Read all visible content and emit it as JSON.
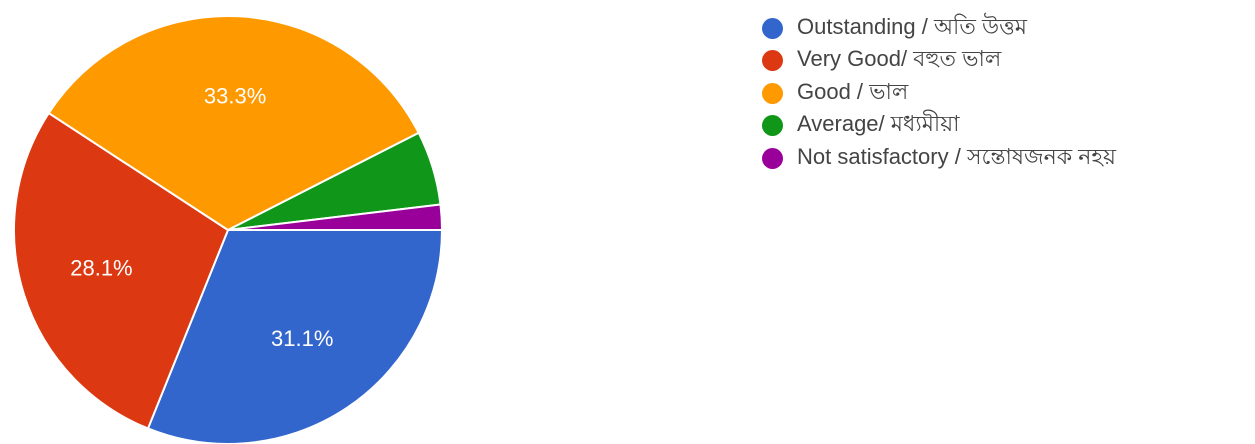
{
  "chart_data": {
    "type": "pie",
    "start_angle_deg": 0,
    "direction": "clockwise",
    "legend_position": "right",
    "slices": [
      {
        "label": "Outstanding / অতি উত্তম",
        "value": 31.1,
        "display": "31.1%",
        "color": "#3366cc",
        "show_label": true
      },
      {
        "label": "Very Good/ বহুত ভাল",
        "value": 28.1,
        "display": "28.1%",
        "color": "#dc3912",
        "show_label": true
      },
      {
        "label": "Good / ভাল",
        "value": 33.3,
        "display": "33.3%",
        "color": "#ff9900",
        "show_label": true
      },
      {
        "label": "Average/ মধ্যমীয়া",
        "value": 5.6,
        "display": "",
        "color": "#109618",
        "show_label": false
      },
      {
        "label": "Not satisfactory / সন্তোষজনক নহয়",
        "value": 1.9,
        "display": "",
        "color": "#990099",
        "show_label": false
      }
    ]
  }
}
